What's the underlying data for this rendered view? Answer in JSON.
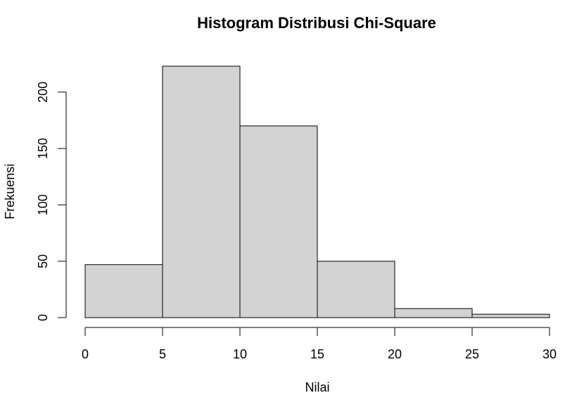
{
  "chart_data": {
    "type": "histogram",
    "title": "Histogram Distribusi Chi-Square",
    "xlabel": "Nilai",
    "ylabel": "Frekuensi",
    "bins": [
      {
        "start": 0,
        "end": 5,
        "value": 47
      },
      {
        "start": 5,
        "end": 10,
        "value": 223
      },
      {
        "start": 10,
        "end": 15,
        "value": 170
      },
      {
        "start": 15,
        "end": 20,
        "value": 50
      },
      {
        "start": 20,
        "end": 25,
        "value": 8
      },
      {
        "start": 25,
        "end": 30,
        "value": 3
      }
    ],
    "xlim": [
      0,
      30
    ],
    "ylim": [
      0,
      223
    ],
    "xticks": [
      "0",
      "5",
      "10",
      "15",
      "20",
      "25",
      "30"
    ],
    "yticks": [
      "0",
      "50",
      "100",
      "150",
      "200"
    ],
    "grid": false,
    "bar_fill": "#d3d3d3",
    "bar_stroke": "#000000"
  }
}
